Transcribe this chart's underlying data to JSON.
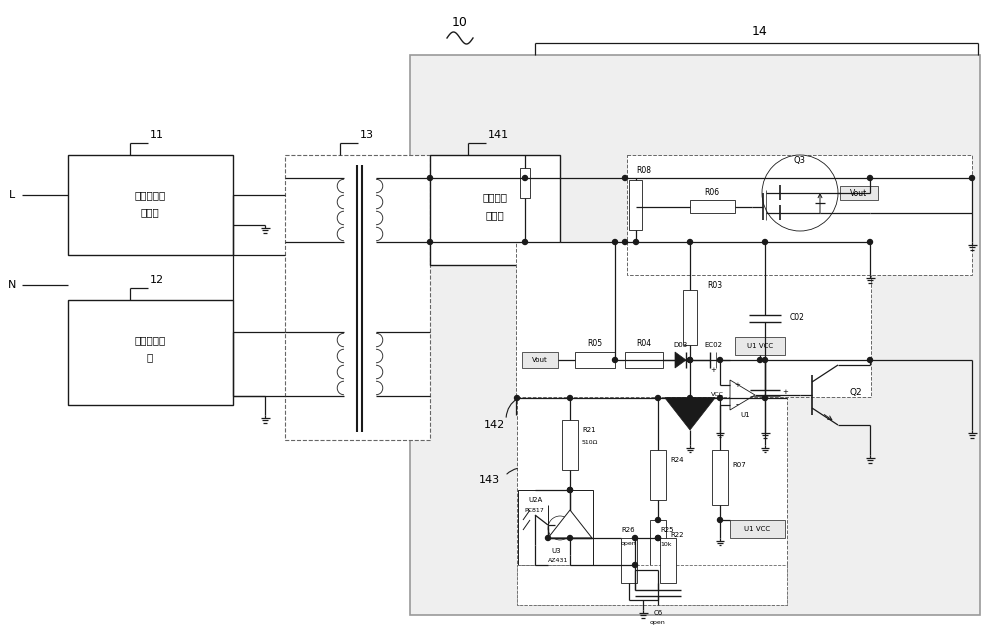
{
  "bg_color": "#ffffff",
  "line_color": "#1a1a1a",
  "box_bg": "#ffffff",
  "dashed_color": "#666666",
  "light_box_bg": "#e8e8e8",
  "outer_box_bg": "#efefef",
  "figsize": [
    10.0,
    6.26
  ],
  "dpi": 100,
  "label_10": "10",
  "label_14": "14",
  "label_11": "11",
  "label_12": "12",
  "label_13": "13",
  "label_141": "141",
  "label_142": "142",
  "label_143": "143",
  "box11_text1": "输入整流滤",
  "box11_text2": "波电路",
  "box12_text1": "电源管理电",
  "box12_text2": "路",
  "box141_text1": "滤波整流",
  "box141_text2": "子电路",
  "L_label": "L",
  "N_label": "N"
}
